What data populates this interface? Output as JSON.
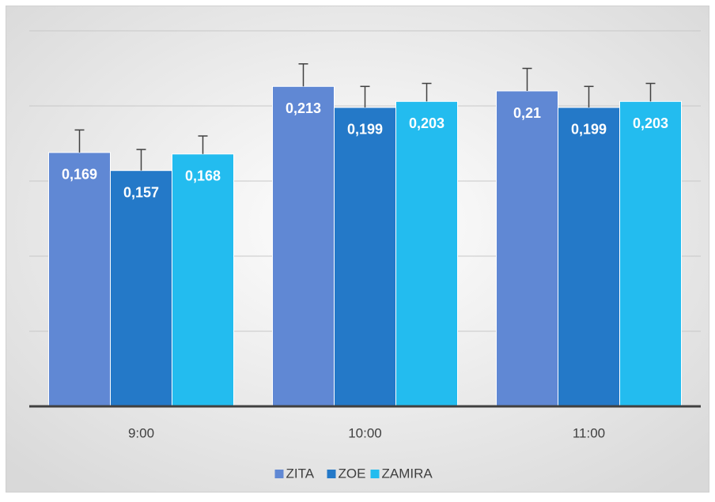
{
  "chart_data": {
    "type": "bar",
    "categories": [
      "9:00",
      "10:00",
      "11:00"
    ],
    "series": [
      {
        "name": "ZITA",
        "color": "#6088d4",
        "values": [
          0.169,
          0.213,
          0.21
        ],
        "value_labels": [
          "0,169",
          "0,213",
          "0,21"
        ],
        "errors": [
          0.015,
          0.015,
          0.015
        ]
      },
      {
        "name": "ZOE",
        "color": "#2479c8",
        "values": [
          0.157,
          0.199,
          0.199
        ],
        "value_labels": [
          "0,157",
          "0,199",
          "0,199"
        ],
        "errors": [
          0.014,
          0.014,
          0.014
        ]
      },
      {
        "name": "ZAMIRA",
        "color": "#23bcef",
        "values": [
          0.168,
          0.203,
          0.203
        ],
        "value_labels": [
          "0,168",
          "0,203",
          "0,203"
        ],
        "errors": [
          0.012,
          0.012,
          0.012
        ]
      }
    ],
    "ylim": [
      0,
      0.25
    ],
    "yticks": [
      0.05,
      0.1,
      0.15,
      0.2,
      0.25
    ],
    "grid": true,
    "legend": "bottom"
  }
}
